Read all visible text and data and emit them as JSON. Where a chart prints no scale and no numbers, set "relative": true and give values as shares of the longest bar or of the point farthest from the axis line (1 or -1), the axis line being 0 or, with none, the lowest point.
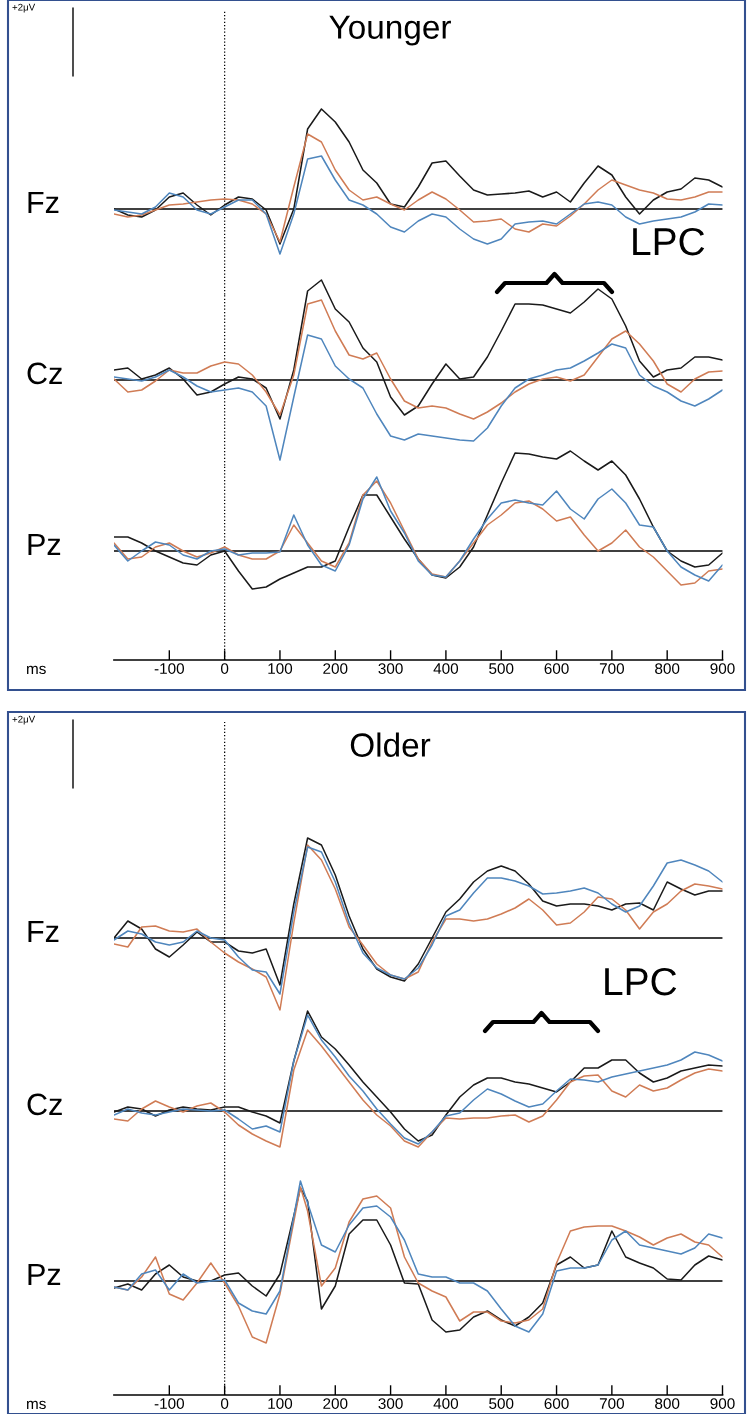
{
  "chart_data": [
    {
      "type": "line",
      "title": "Younger",
      "ylabel": "Fz",
      "annotations": [
        "+2μV"
      ],
      "relative": true,
      "xlim": [
        -200,
        900
      ],
      "tick_labels": false,
      "ref_lines": [
        {
          "axis": "x",
          "value": 0,
          "line_style": "dotted",
          "color": "#000000"
        }
      ],
      "x": [
        -200,
        -175,
        -150,
        -125,
        -100,
        -75,
        -50,
        -25,
        0,
        25,
        50,
        75,
        100,
        125,
        150,
        175,
        200,
        225,
        250,
        275,
        300,
        325,
        350,
        375,
        400,
        425,
        450,
        475,
        500,
        525,
        550,
        575,
        600,
        625,
        650,
        675,
        700,
        725,
        750,
        775,
        800,
        825,
        850,
        875,
        900
      ],
      "series": [
        {
          "color": "#1a1a1a",
          "values": [
            0,
            -0.06,
            -0.08,
            -0.01,
            0.12,
            0.16,
            0.04,
            -0.06,
            0.04,
            0.12,
            0.1,
            -0.01,
            -0.35,
            0.0,
            0.8,
            1.0,
            0.87,
            0.67,
            0.39,
            0.26,
            0.05,
            0.02,
            0.22,
            0.46,
            0.48,
            0.33,
            0.19,
            0.14,
            0.15,
            0.16,
            0.18,
            0.12,
            0.17,
            0.07,
            0.26,
            0.43,
            0.34,
            0.12,
            -0.05,
            0.09,
            0.17,
            0.2,
            0.31,
            0.29,
            0.22
          ]
        },
        {
          "color": "#d07c55",
          "values": [
            -0.05,
            -0.08,
            -0.06,
            -0.01,
            0.04,
            0.05,
            0.07,
            0.09,
            0.1,
            0.09,
            0.05,
            -0.05,
            -0.33,
            0.22,
            0.75,
            0.67,
            0.39,
            0.19,
            0.09,
            0.12,
            0.05,
            -0.01,
            0.09,
            0.17,
            0.1,
            -0.01,
            -0.13,
            -0.12,
            -0.1,
            -0.2,
            -0.23,
            -0.15,
            -0.17,
            -0.07,
            0.05,
            0.19,
            0.29,
            0.24,
            0.19,
            0.16,
            0.1,
            0.09,
            0.12,
            0.17,
            0.17
          ]
        },
        {
          "color": "#4f86bd",
          "values": [
            -0.01,
            -0.03,
            -0.05,
            0.02,
            0.16,
            0.12,
            -0.01,
            -0.05,
            0.02,
            0.09,
            0.09,
            -0.05,
            -0.45,
            -0.05,
            0.5,
            0.53,
            0.29,
            0.09,
            0.04,
            -0.05,
            -0.18,
            -0.23,
            -0.12,
            -0.05,
            -0.08,
            -0.2,
            -0.3,
            -0.35,
            -0.3,
            -0.15,
            -0.13,
            -0.12,
            -0.15,
            -0.05,
            0.05,
            0.07,
            0.04,
            -0.08,
            -0.15,
            -0.12,
            -0.1,
            -0.08,
            -0.03,
            0.05,
            0.04
          ]
        }
      ]
    },
    {
      "type": "line",
      "ylabel": "Cz",
      "relative": true,
      "xlim": [
        -200,
        900
      ],
      "tick_labels": false,
      "annotations": [
        "LPC"
      ],
      "ref_lines": [
        {
          "axis": "x",
          "value": 0,
          "line_style": "dotted",
          "color": "#000000"
        }
      ],
      "x": [
        -200,
        -175,
        -150,
        -125,
        -100,
        -75,
        -50,
        -25,
        0,
        25,
        50,
        75,
        100,
        125,
        150,
        175,
        200,
        225,
        250,
        275,
        300,
        325,
        350,
        375,
        400,
        425,
        450,
        475,
        500,
        525,
        550,
        575,
        600,
        625,
        650,
        675,
        700,
        725,
        750,
        775,
        800,
        825,
        850,
        875,
        900
      ],
      "series": [
        {
          "color": "#1a1a1a",
          "values": [
            0.1,
            0.12,
            0.01,
            0.05,
            0.12,
            0.01,
            -0.15,
            -0.12,
            -0.04,
            0.03,
            0.01,
            -0.08,
            -0.39,
            0.1,
            0.89,
            1.0,
            0.71,
            0.58,
            0.32,
            0.18,
            -0.17,
            -0.35,
            -0.26,
            -0.04,
            0.16,
            0.01,
            0.03,
            0.23,
            0.49,
            0.76,
            0.76,
            0.75,
            0.71,
            0.67,
            0.78,
            0.91,
            0.81,
            0.54,
            0.19,
            0.03,
            0.1,
            0.12,
            0.23,
            0.23,
            0.2
          ]
        },
        {
          "color": "#d07c55",
          "values": [
            0.01,
            -0.12,
            -0.1,
            -0.01,
            0.1,
            0.07,
            0.07,
            0.14,
            0.18,
            0.16,
            0.05,
            -0.12,
            -0.35,
            0.05,
            0.76,
            0.8,
            0.49,
            0.25,
            0.21,
            0.27,
            0.01,
            -0.21,
            -0.28,
            -0.26,
            -0.28,
            -0.34,
            -0.39,
            -0.32,
            -0.23,
            -0.12,
            -0.04,
            0.01,
            0.03,
            -0.01,
            0.05,
            0.23,
            0.41,
            0.49,
            0.36,
            0.19,
            -0.04,
            -0.12,
            0.01,
            0.08,
            0.09
          ]
        },
        {
          "color": "#4f86bd",
          "values": [
            0.03,
            0.01,
            -0.01,
            0.03,
            0.1,
            0.03,
            -0.06,
            -0.12,
            -0.1,
            -0.08,
            -0.12,
            -0.26,
            -0.8,
            -0.17,
            0.45,
            0.41,
            0.14,
            0.01,
            -0.08,
            -0.34,
            -0.56,
            -0.6,
            -0.54,
            -0.56,
            -0.58,
            -0.6,
            -0.61,
            -0.48,
            -0.26,
            -0.08,
            0.01,
            0.05,
            0.1,
            0.12,
            0.19,
            0.27,
            0.36,
            0.32,
            0.05,
            -0.06,
            -0.12,
            -0.21,
            -0.26,
            -0.19,
            -0.1
          ]
        }
      ]
    },
    {
      "type": "line",
      "ylabel": "Pz",
      "xlabel": "ms",
      "relative": true,
      "xlim": [
        -200,
        900
      ],
      "xticks": [
        -100,
        0,
        100,
        200,
        300,
        400,
        500,
        600,
        700,
        800,
        900
      ],
      "tick_labels": "x",
      "ref_lines": [
        {
          "axis": "x",
          "value": 0,
          "line_style": "dotted",
          "color": "#000000"
        }
      ],
      "x": [
        -200,
        -175,
        -150,
        -125,
        -100,
        -75,
        -50,
        -25,
        0,
        25,
        50,
        75,
        100,
        125,
        150,
        175,
        200,
        225,
        250,
        275,
        300,
        325,
        350,
        375,
        400,
        425,
        450,
        475,
        500,
        525,
        550,
        575,
        600,
        625,
        650,
        675,
        700,
        725,
        750,
        775,
        800,
        825,
        850,
        875,
        900
      ],
      "series": [
        {
          "color": "#1a1a1a",
          "values": [
            0.14,
            0.14,
            0.08,
            0,
            -0.06,
            -0.12,
            -0.14,
            -0.04,
            0,
            -0.2,
            -0.38,
            -0.36,
            -0.28,
            -0.22,
            -0.16,
            -0.16,
            -0.1,
            0.24,
            0.56,
            0.56,
            0.34,
            0.12,
            -0.08,
            -0.24,
            -0.27,
            -0.16,
            0.04,
            0.36,
            0.68,
            0.98,
            0.97,
            0.94,
            0.92,
            1.0,
            0.9,
            0.81,
            0.9,
            0.76,
            0.52,
            0.24,
            0,
            -0.1,
            -0.16,
            -0.14,
            -0.02
          ]
        },
        {
          "color": "#d07c55",
          "values": [
            0.08,
            -0.08,
            -0.06,
            0.04,
            0.08,
            0,
            -0.06,
            -0.02,
            0.04,
            -0.04,
            -0.08,
            -0.08,
            0,
            0.26,
            0.08,
            -0.1,
            -0.16,
            0.08,
            0.56,
            0.7,
            0.48,
            0.2,
            -0.08,
            -0.23,
            -0.26,
            -0.1,
            0.08,
            0.26,
            0.36,
            0.48,
            0.5,
            0.42,
            0.3,
            0.34,
            0.16,
            0,
            0.08,
            0.21,
            0.04,
            -0.06,
            -0.2,
            -0.34,
            -0.32,
            -0.2,
            -0.18
          ]
        },
        {
          "color": "#4f86bd",
          "values": [
            0.06,
            -0.1,
            0,
            0.09,
            0.06,
            -0.04,
            -0.08,
            0,
            0.02,
            -0.04,
            -0.02,
            -0.02,
            -0.01,
            0.36,
            0.06,
            -0.14,
            -0.2,
            0.06,
            0.52,
            0.74,
            0.4,
            0.18,
            -0.1,
            -0.24,
            -0.26,
            -0.1,
            0.12,
            0.32,
            0.48,
            0.51,
            0.48,
            0.46,
            0.6,
            0.42,
            0.32,
            0.52,
            0.62,
            0.48,
            0.26,
            0.24,
            0,
            -0.16,
            -0.24,
            -0.3,
            -0.14
          ]
        }
      ]
    },
    {
      "type": "line",
      "title": "Older",
      "ylabel": "Fz",
      "annotations": [
        "+2μV"
      ],
      "relative": true,
      "xlim": [
        -200,
        900
      ],
      "tick_labels": false,
      "ref_lines": [
        {
          "axis": "x",
          "value": 0,
          "line_style": "dotted",
          "color": "#000000"
        }
      ],
      "x": [
        -200,
        -175,
        -150,
        -125,
        -100,
        -75,
        -50,
        -25,
        0,
        25,
        50,
        75,
        100,
        125,
        150,
        175,
        200,
        225,
        250,
        275,
        300,
        325,
        350,
        375,
        400,
        425,
        450,
        475,
        500,
        525,
        550,
        575,
        600,
        625,
        650,
        675,
        700,
        725,
        750,
        775,
        800,
        825,
        850,
        875,
        900
      ],
      "series": [
        {
          "color": "#1a1a1a",
          "values": [
            0,
            0.17,
            0.09,
            -0.11,
            -0.19,
            -0.07,
            0.06,
            -0.04,
            -0.04,
            -0.13,
            -0.15,
            -0.11,
            -0.47,
            0.34,
            1.0,
            0.93,
            0.63,
            0.22,
            -0.11,
            -0.31,
            -0.39,
            -0.43,
            -0.26,
            0,
            0.26,
            0.39,
            0.56,
            0.67,
            0.72,
            0.67,
            0.54,
            0.37,
            0.32,
            0.34,
            0.34,
            0.32,
            0.28,
            0.34,
            0.35,
            0.28,
            0.56,
            0.49,
            0.43,
            0.47,
            0.47
          ]
        },
        {
          "color": "#d07c55",
          "values": [
            -0.06,
            -0.09,
            0.11,
            0.12,
            0.07,
            0.06,
            0.09,
            -0.04,
            -0.15,
            -0.24,
            -0.31,
            -0.39,
            -0.72,
            0.15,
            0.93,
            0.78,
            0.49,
            0.11,
            -0.07,
            -0.26,
            -0.37,
            -0.41,
            -0.34,
            -0.04,
            0.19,
            0.19,
            0.17,
            0.19,
            0.24,
            0.3,
            0.39,
            0.28,
            0.13,
            0.15,
            0.26,
            0.41,
            0.39,
            0.28,
            0.09,
            0.26,
            0.34,
            0.47,
            0.54,
            0.52,
            0.49
          ]
        },
        {
          "color": "#4f86bd",
          "values": [
            -0.02,
            0.07,
            0.04,
            -0.04,
            -0.07,
            -0.04,
            0.07,
            0,
            -0.02,
            -0.19,
            -0.32,
            -0.34,
            -0.56,
            0.26,
            0.91,
            0.86,
            0.56,
            0.15,
            -0.15,
            -0.3,
            -0.37,
            -0.41,
            -0.3,
            -0.07,
            0.22,
            0.28,
            0.45,
            0.6,
            0.6,
            0.57,
            0.52,
            0.44,
            0.45,
            0.47,
            0.5,
            0.45,
            0.34,
            0.26,
            0.32,
            0.52,
            0.75,
            0.78,
            0.73,
            0.67,
            0.56
          ]
        }
      ]
    },
    {
      "type": "line",
      "ylabel": "Cz",
      "relative": true,
      "xlim": [
        -200,
        900
      ],
      "tick_labels": false,
      "annotations": [
        "LPC"
      ],
      "ref_lines": [
        {
          "axis": "x",
          "value": 0,
          "line_style": "dotted",
          "color": "#000000"
        }
      ],
      "x": [
        -200,
        -175,
        -150,
        -125,
        -100,
        -75,
        -50,
        -25,
        0,
        25,
        50,
        75,
        100,
        125,
        150,
        175,
        200,
        225,
        250,
        275,
        300,
        325,
        350,
        375,
        400,
        425,
        450,
        475,
        500,
        525,
        550,
        575,
        600,
        625,
        650,
        675,
        700,
        725,
        750,
        775,
        800,
        825,
        850,
        875,
        900
      ],
      "series": [
        {
          "color": "#1a1a1a",
          "values": [
            -0.01,
            0.04,
            0.02,
            -0.05,
            0.01,
            0.04,
            0.02,
            0.01,
            0.04,
            0.04,
            -0.01,
            -0.05,
            -0.12,
            0.5,
            1.0,
            0.74,
            0.62,
            0.46,
            0.29,
            0.14,
            -0.01,
            -0.18,
            -0.3,
            -0.24,
            -0.04,
            0.14,
            0.26,
            0.33,
            0.33,
            0.29,
            0.27,
            0.23,
            0.19,
            0.29,
            0.43,
            0.43,
            0.51,
            0.51,
            0.38,
            0.29,
            0.33,
            0.4,
            0.43,
            0.46,
            0.45
          ]
        },
        {
          "color": "#d07c55",
          "values": [
            -0.08,
            -0.1,
            0.02,
            0.1,
            0.04,
            -0.01,
            0.05,
            0.08,
            -0.01,
            -0.14,
            -0.23,
            -0.3,
            -0.36,
            0.41,
            0.81,
            0.65,
            0.47,
            0.29,
            0.11,
            -0.04,
            -0.15,
            -0.3,
            -0.36,
            -0.21,
            -0.07,
            -0.08,
            -0.07,
            -0.07,
            -0.05,
            -0.04,
            -0.11,
            -0.05,
            0.11,
            0.29,
            0.35,
            0.36,
            0.2,
            0.14,
            0.26,
            0.2,
            0.23,
            0.31,
            0.38,
            0.42,
            0.4
          ]
        },
        {
          "color": "#4f86bd",
          "values": [
            -0.04,
            0.02,
            -0.02,
            -0.04,
            -0.01,
            0.02,
            0.01,
            0,
            0.01,
            -0.08,
            -0.18,
            -0.15,
            -0.21,
            0.5,
            0.96,
            0.71,
            0.54,
            0.35,
            0.2,
            0.02,
            -0.13,
            -0.27,
            -0.33,
            -0.21,
            -0.05,
            -0.02,
            0.11,
            0.22,
            0.17,
            0.1,
            0.04,
            0.07,
            0.2,
            0.32,
            0.31,
            0.29,
            0.34,
            0.37,
            0.4,
            0.43,
            0.46,
            0.51,
            0.59,
            0.56,
            0.5
          ]
        }
      ]
    },
    {
      "type": "line",
      "ylabel": "Pz",
      "xlabel": "ms",
      "relative": true,
      "xlim": [
        -200,
        900
      ],
      "xticks": [
        -100,
        0,
        100,
        200,
        300,
        400,
        500,
        600,
        700,
        800,
        900
      ],
      "tick_labels": "x",
      "ref_lines": [
        {
          "axis": "x",
          "value": 0,
          "line_style": "dotted",
          "color": "#000000"
        }
      ],
      "x": [
        -200,
        -175,
        -150,
        -125,
        -100,
        -75,
        -50,
        -25,
        0,
        25,
        50,
        75,
        100,
        137,
        150,
        175,
        200,
        225,
        250,
        275,
        300,
        325,
        350,
        375,
        400,
        425,
        450,
        475,
        500,
        525,
        550,
        575,
        600,
        625,
        650,
        675,
        700,
        725,
        750,
        775,
        800,
        825,
        850,
        875,
        900
      ],
      "series": [
        {
          "color": "#1a1a1a",
          "values": [
            -0.07,
            -0.03,
            -0.09,
            0.07,
            0.16,
            0.04,
            0,
            0,
            0.06,
            0.08,
            -0.05,
            -0.15,
            0.07,
            0.93,
            0.8,
            -0.28,
            -0.05,
            0.47,
            0.61,
            0.61,
            0.36,
            -0.02,
            -0.03,
            -0.39,
            -0.51,
            -0.49,
            -0.36,
            -0.3,
            -0.39,
            -0.45,
            -0.36,
            -0.22,
            0.16,
            0.24,
            0.13,
            0.16,
            0.5,
            0.24,
            0.18,
            0.13,
            0.02,
            0.01,
            0.16,
            0.25,
            0.21
          ]
        },
        {
          "color": "#d07c55",
          "values": [
            -0.06,
            -0.09,
            0.04,
            0.24,
            -0.13,
            -0.19,
            -0.02,
            0.18,
            -0.02,
            -0.25,
            -0.56,
            -0.62,
            -0.13,
            0.94,
            0.7,
            -0.05,
            0.13,
            0.59,
            0.82,
            0.85,
            0.73,
            0.24,
            -0.02,
            -0.1,
            -0.16,
            -0.4,
            -0.31,
            -0.31,
            -0.4,
            -0.42,
            -0.39,
            -0.28,
            0.18,
            0.5,
            0.54,
            0.55,
            0.55,
            0.5,
            0.44,
            0.36,
            0.43,
            0.47,
            0.39,
            0.36,
            0.24
          ]
        },
        {
          "color": "#4f86bd",
          "values": [
            -0.06,
            -0.09,
            0.07,
            0.11,
            -0.09,
            0.07,
            -0.02,
            0,
            0.01,
            -0.22,
            -0.3,
            -0.33,
            -0.1,
            1.0,
            0.78,
            0.36,
            0.29,
            0.56,
            0.73,
            0.75,
            0.64,
            0.41,
            0.07,
            0.04,
            0.04,
            -0.02,
            -0.02,
            -0.1,
            -0.28,
            -0.45,
            -0.51,
            -0.33,
            0.1,
            0.13,
            0.13,
            0.16,
            0.41,
            0.5,
            0.36,
            0.33,
            0.3,
            0.27,
            0.33,
            0.47,
            0.43
          ]
        }
      ]
    }
  ]
}
